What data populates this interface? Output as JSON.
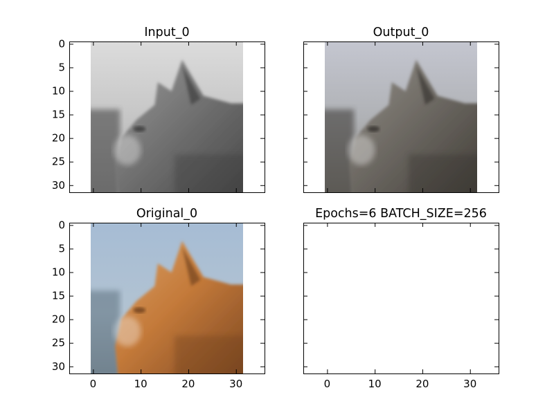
{
  "chart_data": [
    {
      "type": "image",
      "title": "Input_0",
      "image_description": "grayscale cat head profile",
      "image_size": [
        32,
        32
      ],
      "xlim": [
        -5,
        36
      ],
      "ylim": [
        31.5,
        -0.5
      ],
      "yticks": [
        0,
        5,
        10,
        15,
        20,
        25,
        30
      ],
      "xticks": [],
      "colors": {
        "background": "#c8c8c8",
        "subject": "#6e6e6e",
        "shadow": "#3a3a3a"
      }
    },
    {
      "type": "image",
      "title": "Output_0",
      "image_description": "greyish reconstructed cat head profile",
      "image_size": [
        32,
        32
      ],
      "xlim": [
        -5,
        36
      ],
      "ylim": [
        31.5,
        -0.5
      ],
      "yticks": [],
      "xticks": [],
      "colors": {
        "background": "#b7b9c2",
        "subject": "#6d6a66",
        "shadow": "#35332f"
      }
    },
    {
      "type": "image",
      "title": "Original_0",
      "image_description": "orange tabby cat head profile on pale blue background",
      "image_size": [
        32,
        32
      ],
      "xlim": [
        -5,
        36
      ],
      "ylim": [
        31.5,
        -0.5
      ],
      "yticks": [
        0,
        5,
        10,
        15,
        20,
        25,
        30
      ],
      "xticks": [
        0,
        10,
        20,
        30
      ],
      "colors": {
        "background": "#a9bed3",
        "subject": "#c47a3a",
        "shadow": "#6e3f1a",
        "left_blur": "#5c6f7e"
      }
    },
    {
      "type": "empty",
      "title": "Epochs=6 BATCH_SIZE=256",
      "xlim": [
        -5,
        36
      ],
      "ylim": [
        31.5,
        -0.5
      ],
      "yticks": [],
      "xticks": [
        0,
        10,
        20,
        30
      ]
    }
  ]
}
